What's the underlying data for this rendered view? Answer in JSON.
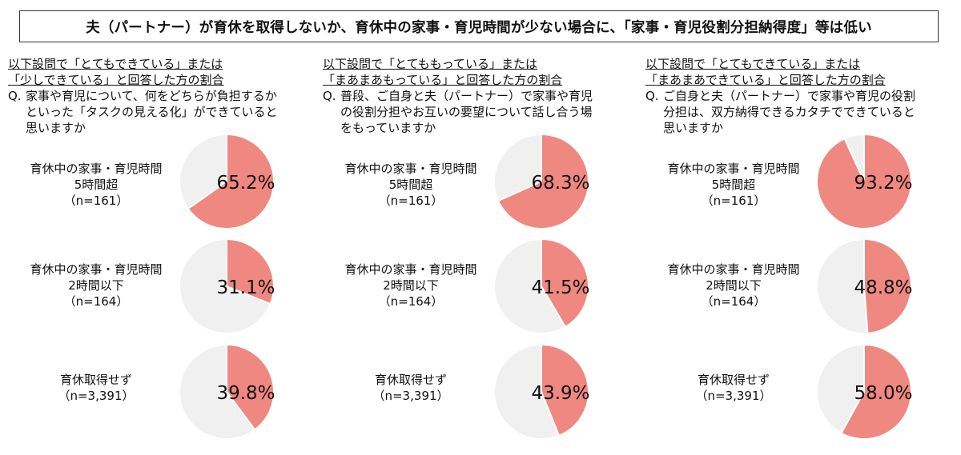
{
  "title": "夫（パートナー）が育休を取得しないか、育休中の家事・育児時間が少ない場合に、「家事・育児役割分担納得度」等は低い",
  "colors": {
    "filled": "#ef8880",
    "rest": "#f0f0f0",
    "stroke": "#ffffff"
  },
  "chart_data": [
    {
      "type": "pie",
      "header": [
        "以下設問で「とてもできている」または",
        "「少しできている」と回答した方の割合"
      ],
      "question_mark": "Q.",
      "question": "家事や育児について、何をどちらが負担するか\nといった「タスクの見える化」ができていると\n思いますか",
      "groups": [
        {
          "label": "育休中の家事・育児時間\n5時間超\n（n=161）",
          "value": 65.2,
          "value_label": "65.2%"
        },
        {
          "label": "育休中の家事・育児時間\n2時間以下\n（n=164）",
          "value": 31.1,
          "value_label": "31.1%"
        },
        {
          "label": "育休取得せず\n（n=3,391）",
          "value": 39.8,
          "value_label": "39.8%"
        }
      ]
    },
    {
      "type": "pie",
      "header": [
        "以下設問で「とてももっている」または",
        "「まあまあもっている」と回答した方の割合"
      ],
      "question_mark": "Q.",
      "question": "普段、ご自身と夫（パートナー）で家事や育児\nの役割分担やお互いの要望について話し合う場\nをもっていますか",
      "groups": [
        {
          "label": "育休中の家事・育児時間\n5時間超\n（n=161）",
          "value": 68.3,
          "value_label": "68.3%"
        },
        {
          "label": "育休中の家事・育児時間\n2時間以下\n（n=164）",
          "value": 41.5,
          "value_label": "41.5%"
        },
        {
          "label": "育休取得せず\n（n=3,391）",
          "value": 43.9,
          "value_label": "43.9%"
        }
      ]
    },
    {
      "type": "pie",
      "header": [
        "以下設問で「とてもできている」または",
        "「まあまあできている」と回答した方の割合"
      ],
      "question_mark": "Q.",
      "question": "ご自身と夫（パートナー）で家事や育児の役割\n分担は、双方納得できるカタチでできていると\n思いますか",
      "groups": [
        {
          "label": "育休中の家事・育児時間\n5時間超\n（n=161）",
          "value": 93.2,
          "value_label": "93.2%"
        },
        {
          "label": "育休中の家事・育児時間\n2時間以下\n（n=164）",
          "value": 48.8,
          "value_label": "48.8%"
        },
        {
          "label": "育休取得せず\n（n=3,391）",
          "value": 58.0,
          "value_label": "58.0%"
        }
      ]
    }
  ]
}
